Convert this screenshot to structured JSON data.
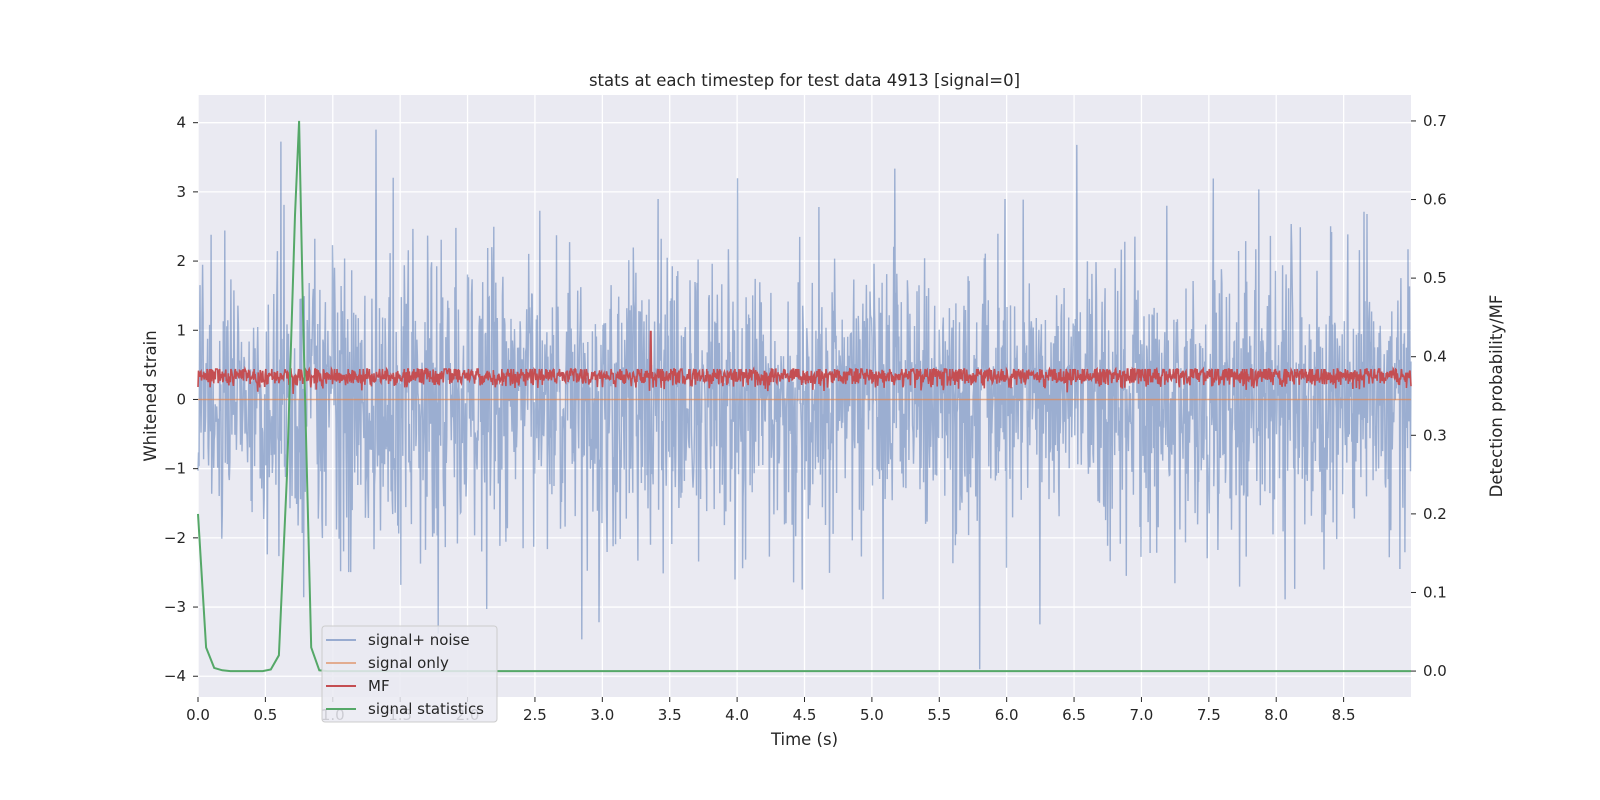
{
  "chart_data": {
    "type": "line",
    "title": "stats at each timestep for test data 4913 [signal=0]",
    "xlabel": "Time (s)",
    "ylabel_left": "Whitened strain",
    "ylabel_right": "Detection probability/MF",
    "xlim": [
      0.0,
      9.0
    ],
    "ylim_left": [
      -4.3,
      4.4
    ],
    "ylim_right": [
      -0.033,
      0.733
    ],
    "x_ticks": [
      "0.0",
      "0.5",
      "1.0",
      "1.5",
      "2.0",
      "2.5",
      "3.0",
      "3.5",
      "4.0",
      "4.5",
      "5.0",
      "5.5",
      "6.0",
      "6.5",
      "7.0",
      "7.5",
      "8.0",
      "8.5"
    ],
    "y_left_ticks": [
      "4",
      "3",
      "2",
      "1",
      "0",
      "−1",
      "−2",
      "−3",
      "−4"
    ],
    "y_right_ticks": [
      "0.7",
      "0.6",
      "0.5",
      "0.4",
      "0.3",
      "0.2",
      "0.1",
      "0.0"
    ],
    "grid": true,
    "legend_position": "lower-left",
    "colors": {
      "noise": "#4c72b0",
      "signal": "#dd8452",
      "mf": "#c44e52",
      "stat": "#55a868",
      "plot_bg": "#eaeaf2",
      "grid": "#ffffff"
    },
    "series": [
      {
        "name": "signal+ noise",
        "axis": "left",
        "note": "dense noisy whitened strain, amplitude mostly within about -2.5..2.5 with spikes near +4.0 (t~1.32) and -3.95 (t~5.80)"
      },
      {
        "name": "signal only",
        "axis": "left",
        "x": [
          0.0,
          9.0
        ],
        "y": [
          0.0,
          0.0
        ]
      },
      {
        "name": "MF",
        "axis": "left",
        "note": "matched-filter output fluctuating roughly between 0.0 and 0.8, max about 0.98 near t~3.36"
      },
      {
        "name": "signal statistics",
        "axis": "right",
        "x": [
          0.0,
          0.06,
          0.12,
          0.18,
          0.24,
          0.3,
          0.36,
          0.42,
          0.48,
          0.54,
          0.6,
          0.66,
          0.72,
          0.75,
          0.78,
          0.84,
          0.9,
          0.96,
          9.0
        ],
        "y": [
          0.2,
          0.03,
          0.004,
          0.001,
          0.0,
          0.0,
          0.0,
          0.0,
          0.0,
          0.002,
          0.02,
          0.25,
          0.58,
          0.7,
          0.45,
          0.03,
          0.001,
          0.0,
          0.0
        ]
      }
    ]
  }
}
